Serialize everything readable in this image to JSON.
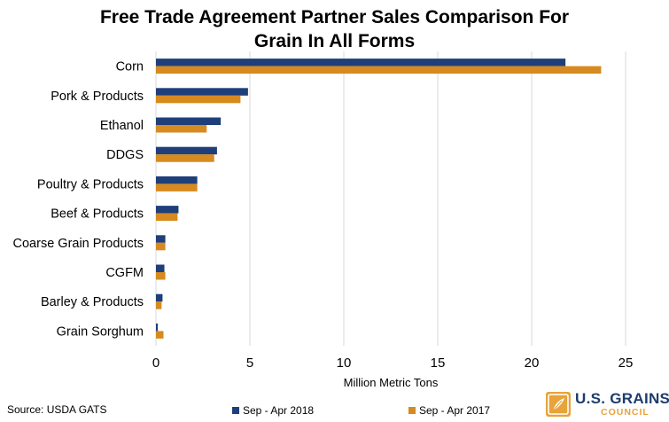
{
  "chart_data": {
    "type": "bar",
    "orientation": "horizontal",
    "title": "Free Trade Agreement Partner Sales Comparison For Grain In All Forms",
    "title_lines": [
      "Free Trade Agreement Partner Sales Comparison For",
      "Grain In All Forms"
    ],
    "categories": [
      "Corn",
      "Pork & Products",
      "Ethanol",
      "DDGS",
      "Poultry & Products",
      "Beef & Products",
      "Coarse Grain Products",
      "CGFM",
      "Barley & Products",
      "Grain Sorghum"
    ],
    "series": [
      {
        "name": "Sep - Apr 2018",
        "color": "#1f3f7a",
        "values": [
          21.8,
          4.9,
          3.45,
          3.25,
          2.2,
          1.2,
          0.5,
          0.45,
          0.35,
          0.1
        ]
      },
      {
        "name": "Sep - Apr 2017",
        "color": "#d68a1f",
        "values": [
          23.7,
          4.5,
          2.7,
          3.1,
          2.2,
          1.15,
          0.5,
          0.5,
          0.3,
          0.4
        ]
      }
    ],
    "xlabel": "Million Metric Tons",
    "ylabel": "",
    "xlim": [
      0,
      25
    ],
    "xticks": [
      0,
      5,
      10,
      15,
      20,
      25
    ],
    "grid": "vertical",
    "legend_position": "bottom"
  },
  "footer": {
    "source": "Source: USDA GATS"
  },
  "logo": {
    "name": "U.S. GRAINS",
    "sub": "COUNCIL",
    "icon": "grain-leaf-icon"
  }
}
